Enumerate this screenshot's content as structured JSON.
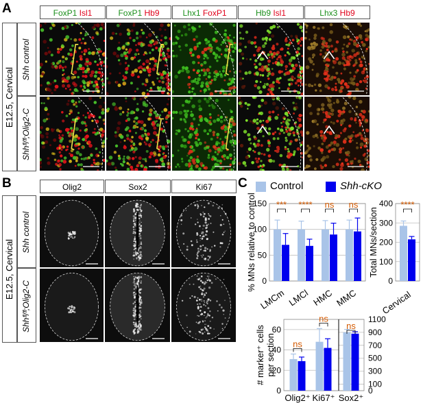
{
  "panels": {
    "A": {
      "letter": "A",
      "stage_label": "E12.5, Cervical",
      "rows": [
        "Shh control",
        "Shhᶠˡ/ᶠˡ;Olig2-C"
      ],
      "columns": [
        {
          "green": "FoxP1",
          "red": "Isl1"
        },
        {
          "green": "FoxP1",
          "red": "Hb9"
        },
        {
          "green": "Lhx1",
          "red": "FoxP1"
        },
        {
          "green": "Hb9",
          "red": "Isl1"
        },
        {
          "green": "Lhx3",
          "red": "Hb9"
        }
      ]
    },
    "B": {
      "letter": "B",
      "stage_label": "E12.5, Cervical",
      "rows": [
        "Shh control",
        "Shhᶠˡ/ᶠˡ;Olig2-C"
      ],
      "columns": [
        "Olig2",
        "Sox2",
        "Ki67"
      ]
    },
    "C": {
      "letter": "C",
      "legend": [
        {
          "label": "Control",
          "color": "#a9c4e8"
        },
        {
          "label": "Shh-cKO",
          "color": "#0000ee"
        }
      ]
    }
  },
  "chart_data": [
    {
      "type": "bar",
      "categories": [
        "LMCm",
        "LMCl",
        "HMC",
        "MMC"
      ],
      "ylabel": "% MNs relative to control",
      "ylim": [
        0,
        150
      ],
      "yticks": [
        0,
        50,
        100,
        150
      ],
      "series": [
        {
          "name": "Control",
          "values": [
            100,
            100,
            100,
            100
          ],
          "errors": [
            18,
            16,
            17,
            18
          ]
        },
        {
          "name": "Shh-cKO",
          "values": [
            70,
            68,
            90,
            96
          ],
          "errors": [
            22,
            13,
            22,
            26
          ]
        }
      ],
      "significance": [
        "***",
        "****",
        "ns",
        "ns"
      ]
    },
    {
      "type": "bar",
      "categories": [
        "Cervical"
      ],
      "ylabel": "Total MNs/section",
      "ylim": [
        0,
        400
      ],
      "yticks": [
        0,
        100,
        200,
        300,
        400
      ],
      "series": [
        {
          "name": "Control",
          "values": [
            285
          ],
          "errors": [
            25
          ]
        },
        {
          "name": "Shh-cKO",
          "values": [
            215
          ],
          "errors": [
            15
          ]
        }
      ],
      "significance": [
        "****"
      ]
    },
    {
      "type": "bar",
      "categories": [
        "Olig2⁺",
        "Ki67⁺",
        "Sox2⁺"
      ],
      "ylabel": "# marker⁺ cells per section",
      "ylim_left": [
        0,
        70
      ],
      "yticks_left": [
        0,
        20,
        40,
        60
      ],
      "ylim_right": [
        0,
        1100
      ],
      "yticks_right": [
        0,
        100,
        300,
        500,
        700,
        900,
        1100
      ],
      "series": [
        {
          "name": "Control",
          "values": [
            31,
            48,
            900
          ],
          "errors": [
            5,
            13,
            45
          ]
        },
        {
          "name": "Shh-cKO",
          "values": [
            29,
            42,
            880
          ],
          "errors": [
            4,
            9,
            30
          ]
        }
      ],
      "significance": [
        "ns",
        "ns",
        "ns"
      ]
    }
  ]
}
